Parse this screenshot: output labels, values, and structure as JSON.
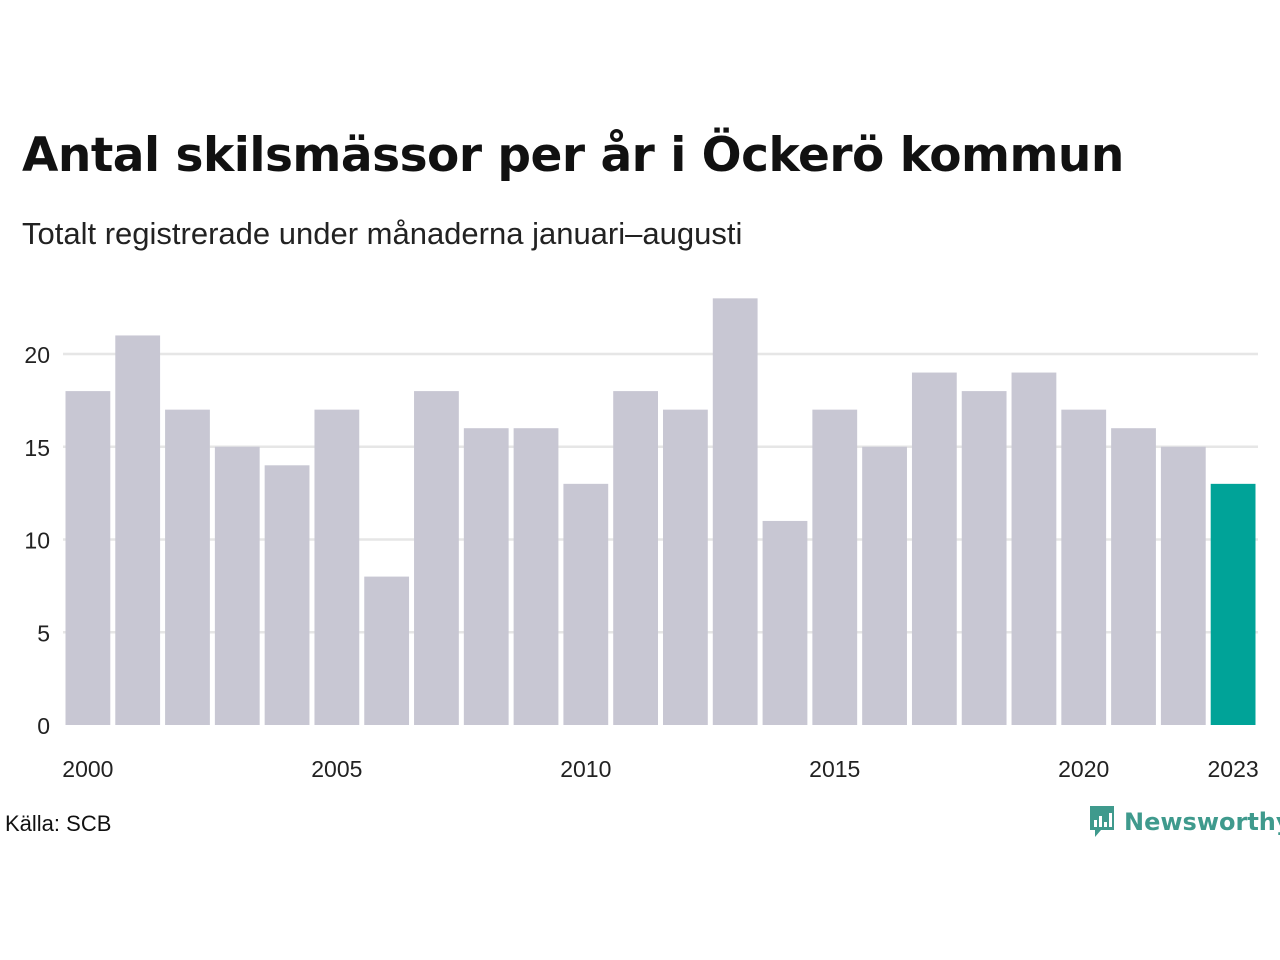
{
  "title": "Antal skilsmässor per år i Öckerö kommun",
  "subtitle": "Totalt registrerade under månaderna januari–augusti",
  "source": "Källa: SCB",
  "brand": "Newsworthy",
  "colors": {
    "bar": "#c8c7d3",
    "highlight": "#00a398",
    "grid": "#e6e6e6",
    "brand": "#3f9a8d"
  },
  "chart_data": {
    "type": "bar",
    "title": "Antal skilsmässor per år i Öckerö kommun",
    "subtitle": "Totalt registrerade under månaderna januari–augusti",
    "categories": [
      "2000",
      "2001",
      "2002",
      "2003",
      "2004",
      "2005",
      "2006",
      "2007",
      "2008",
      "2009",
      "2010",
      "2011",
      "2012",
      "2013",
      "2014",
      "2015",
      "2016",
      "2017",
      "2018",
      "2019",
      "2020",
      "2021",
      "2022",
      "2023"
    ],
    "values": [
      18,
      21,
      17,
      15,
      14,
      17,
      8,
      18,
      16,
      16,
      13,
      18,
      17,
      23,
      11,
      17,
      15,
      19,
      18,
      19,
      17,
      16,
      15,
      13
    ],
    "highlight": "2023",
    "x_tick_labels": [
      "2000",
      "2005",
      "2010",
      "2015",
      "2020",
      "2023"
    ],
    "y_ticks": [
      0,
      5,
      10,
      15,
      20
    ],
    "ylim": [
      0,
      23
    ],
    "grid": true,
    "xlabel": "",
    "ylabel": ""
  }
}
